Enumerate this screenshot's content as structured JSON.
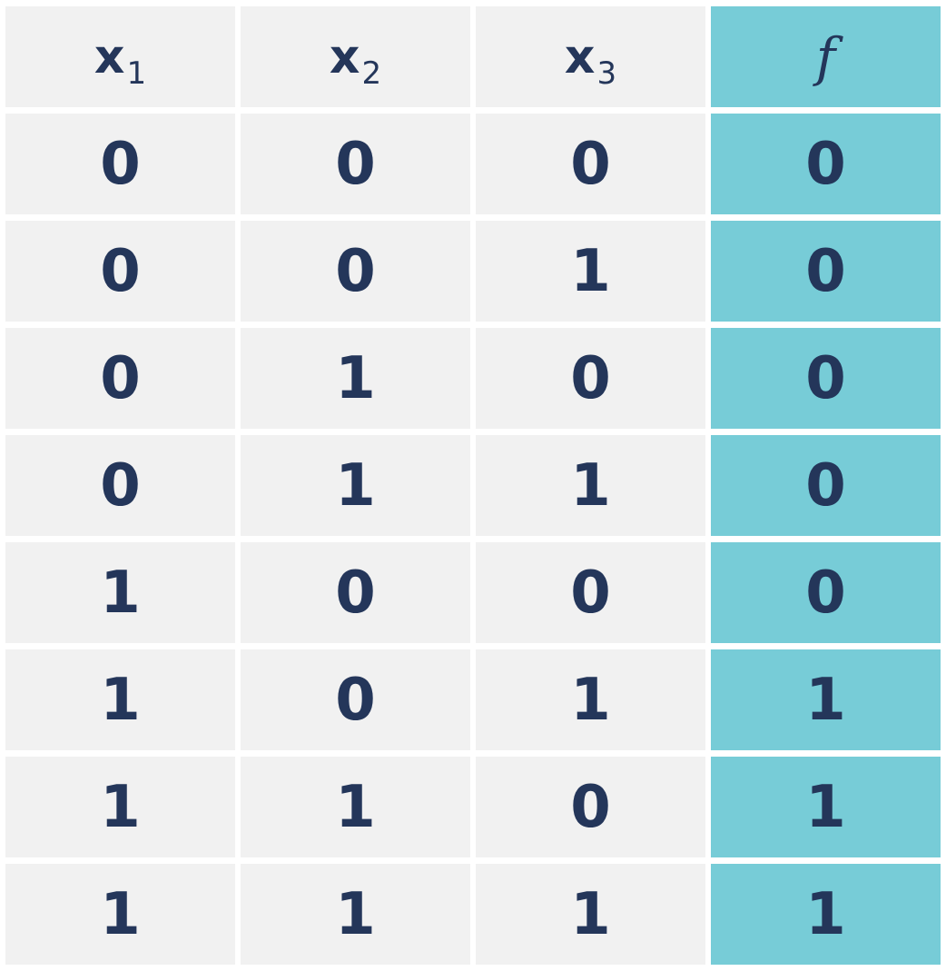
{
  "table": {
    "headers": [
      {
        "base": "x",
        "sub": "1"
      },
      {
        "base": "x",
        "sub": "2"
      },
      {
        "base": "x",
        "sub": "3"
      }
    ],
    "output_header": "f",
    "rows": [
      [
        "0",
        "0",
        "0",
        "0"
      ],
      [
        "0",
        "0",
        "1",
        "0"
      ],
      [
        "0",
        "1",
        "0",
        "0"
      ],
      [
        "0",
        "1",
        "1",
        "0"
      ],
      [
        "1",
        "0",
        "0",
        "0"
      ],
      [
        "1",
        "0",
        "1",
        "1"
      ],
      [
        "1",
        "1",
        "0",
        "1"
      ],
      [
        "1",
        "1",
        "1",
        "1"
      ]
    ]
  },
  "colors": {
    "cell_background": "#f1f1f1",
    "output_background": "#77ccd7",
    "text": "#24365a",
    "grid_lines": "#ffffff"
  }
}
